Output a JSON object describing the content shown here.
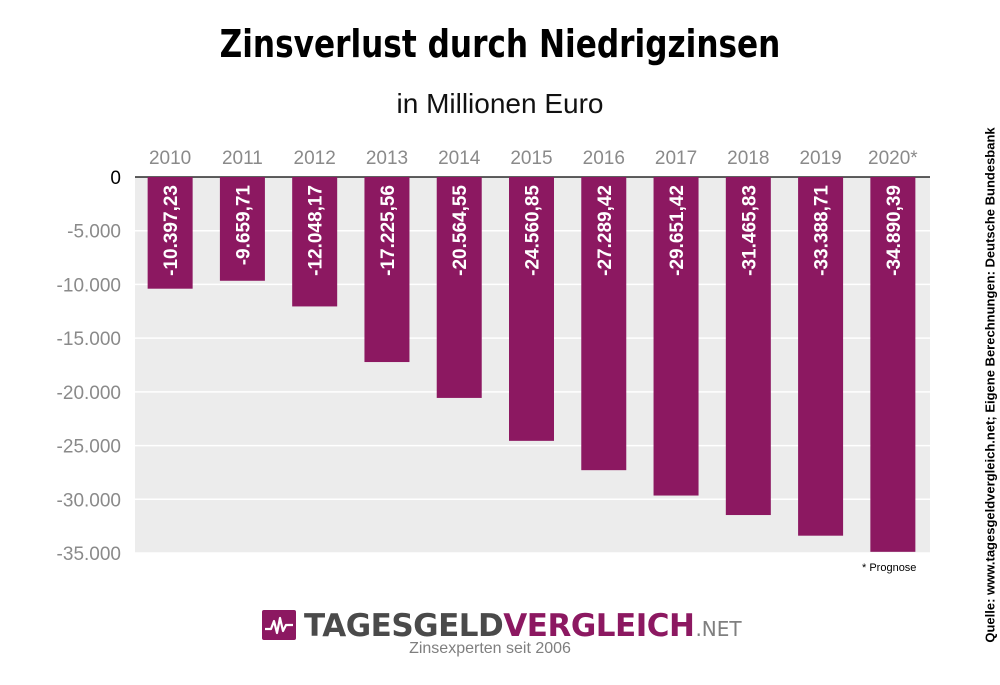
{
  "logo": {
    "name_dark": "TAGESGELD",
    "name_accent": "VERGLEICH",
    "tld": ".NET",
    "tagline": "Zinsexperten seit 2006"
  },
  "source": "Quelle: www.tagesgeldvergleich.net; Eigene Berechnungen: Deutsche Bundesbank",
  "footnote": "* Prognose",
  "colors": {
    "bar": "#8c1861",
    "plot_background": "#ececec",
    "grid": "#ffffff",
    "logo_dark": "#4a4a4a",
    "logo_accent": "#8c1861"
  },
  "chart_data": {
    "type": "bar",
    "title": "Zinsverlust durch Niedrigzinsen",
    "subtitle": "in Millionen Euro",
    "categories": [
      "2010",
      "2011",
      "2012",
      "2013",
      "2014",
      "2015",
      "2016",
      "2017",
      "2018",
      "2019",
      "2020*"
    ],
    "values": [
      -10397.23,
      -9659.71,
      -12048.17,
      -17225.56,
      -20564.55,
      -24560.85,
      -27289.42,
      -29651.42,
      -31465.83,
      -33388.71,
      -34890.39
    ],
    "data_labels": [
      "-10.397,23",
      "-9.659,71",
      "-12.048,17",
      "-17.225,56",
      "-20.564,55",
      "-24.560,85",
      "-27.289,42",
      "-29.651,42",
      "-31.465,83",
      "-33.388,71",
      "-34.890,39"
    ],
    "ylim": [
      -35000,
      0
    ],
    "yticks": [
      0,
      -5000,
      -10000,
      -15000,
      -20000,
      -25000,
      -30000,
      -35000
    ],
    "ytick_labels": [
      "0",
      "-5.000",
      "-10.000",
      "-15.000",
      "-20.000",
      "-25.000",
      "-30.000",
      "-35.000"
    ],
    "grid": true,
    "xaxis_position": "top"
  }
}
